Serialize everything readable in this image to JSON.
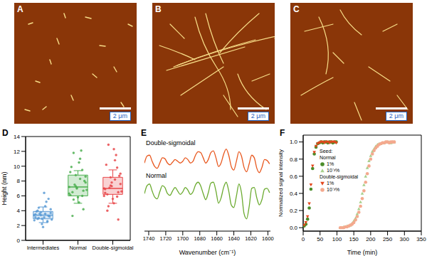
{
  "images": [
    {
      "label": "A",
      "scale_bar": "2 μm"
    },
    {
      "label": "B",
      "scale_bar": "2 μm"
    },
    {
      "label": "C",
      "scale_bar": "2 μm"
    }
  ],
  "chart_data": [
    {
      "type": "box",
      "title": "D",
      "ylabel": "Height (nm)",
      "categories": [
        "Intermediates",
        "Normal",
        "Double-sigmoidal"
      ],
      "colors": [
        "#5b9bd5",
        "#4caf50",
        "#e8474a"
      ],
      "ylim": [
        0,
        14
      ],
      "yticks": [
        0,
        2,
        4,
        6,
        8,
        10,
        12,
        14
      ],
      "boxes": [
        {
          "whisker_low": 2.4,
          "q1": 2.9,
          "median": 3.4,
          "q3": 3.9,
          "whisker_high": 4.5
        },
        {
          "whisker_low": 5.0,
          "q1": 6.0,
          "median": 7.2,
          "q3": 8.8,
          "whisker_high": 9.4
        },
        {
          "whisker_low": 5.0,
          "q1": 6.2,
          "median": 7.0,
          "q3": 8.5,
          "whisker_high": 9.5
        }
      ],
      "points": [
        [
          3.4,
          2.9,
          3.8,
          3.1,
          2.6,
          4.2,
          3.5,
          3.0,
          2.2,
          4.6,
          3.3,
          2.8,
          3.9,
          3.6,
          1.8,
          5.2,
          3.2,
          2.7,
          4.0,
          3.4,
          6.4,
          2.5,
          3.7,
          3.1,
          4.4,
          2.9,
          3.6,
          5.6
        ],
        [
          7.2,
          6.5,
          8.8,
          5.1,
          9.5,
          7.8,
          6.1,
          11.8,
          7.0,
          8.3,
          4.2,
          6.8,
          9.9,
          7.5,
          5.8,
          12.1,
          8.0,
          6.3,
          3.3,
          7.3,
          10.5,
          6.0,
          8.6,
          9.2,
          5.5,
          7.1,
          11.0,
          6.7
        ],
        [
          7.0,
          6.2,
          8.5,
          5.0,
          9.8,
          7.6,
          6.4,
          12.9,
          7.3,
          8.2,
          2.8,
          6.6,
          10.2,
          7.1,
          5.6,
          11.5,
          8.7,
          6.0,
          4.0,
          7.4,
          12.3,
          5.9,
          9.0,
          6.9,
          4.6,
          7.8,
          10.8,
          6.5
        ]
      ]
    },
    {
      "type": "line",
      "title": "E",
      "xlabel": "Wavenumber (cm⁻¹)",
      "x": [
        1745,
        1742,
        1739,
        1736,
        1733,
        1730,
        1727,
        1724,
        1721,
        1718,
        1715,
        1712,
        1709,
        1706,
        1703,
        1700,
        1697,
        1694,
        1691,
        1688,
        1685,
        1682,
        1679,
        1676,
        1673,
        1670,
        1667,
        1664,
        1661,
        1658,
        1655,
        1652,
        1649,
        1646,
        1643,
        1640,
        1637,
        1634,
        1631,
        1628,
        1625,
        1622,
        1619,
        1616,
        1613,
        1610,
        1607,
        1604,
        1601,
        1598
      ],
      "xlim": [
        1745,
        1597
      ],
      "xticks": [
        1740,
        1720,
        1700,
        1680,
        1660,
        1640,
        1620,
        1600
      ],
      "ylim": [
        0,
        11
      ],
      "tick_labels": "x",
      "series": [
        {
          "name": "Double-sigmoidal",
          "color": "#e8571e",
          "values": [
            7.8,
            8.6,
            8.7,
            8.0,
            7.4,
            7.2,
            7.8,
            8.4,
            8.3,
            7.8,
            7.6,
            7.9,
            8.2,
            8.0,
            7.8,
            8.0,
            8.4,
            8.2,
            7.8,
            8.0,
            8.7,
            9.1,
            9.0,
            8.4,
            7.8,
            8.2,
            9.0,
            9.2,
            8.4,
            7.4,
            7.8,
            8.8,
            9.4,
            8.7,
            7.4,
            7.0,
            8.0,
            9.1,
            8.6,
            7.3,
            6.8,
            7.7,
            8.7,
            8.4,
            7.2,
            6.7,
            7.3,
            8.2,
            8.1,
            7.7
          ]
        },
        {
          "name": "Normal",
          "color": "#6aaa2e",
          "values": [
            4.3,
            5.2,
            5.4,
            4.6,
            3.9,
            3.7,
            4.5,
            5.2,
            5.0,
            4.3,
            4.1,
            4.6,
            5.0,
            4.6,
            4.2,
            4.5,
            5.0,
            4.7,
            4.2,
            4.5,
            5.3,
            5.6,
            5.2,
            4.3,
            3.6,
            4.4,
            5.5,
            5.6,
            4.6,
            3.2,
            3.8,
            5.0,
            5.6,
            4.6,
            3.0,
            2.7,
            4.0,
            5.4,
            4.4,
            2.0,
            1.4,
            2.8,
            4.9,
            5.0,
            3.8,
            3.0,
            3.6,
            4.8,
            4.9,
            4.4
          ]
        }
      ]
    },
    {
      "type": "scatter",
      "title": "F",
      "xlabel": "Time (min)",
      "ylabel": "Normalized signal intensity",
      "xlim": [
        0,
        350
      ],
      "xticks": [
        0,
        50,
        100,
        150,
        200,
        250,
        300,
        350
      ],
      "ylim": [
        -0.04,
        1.08
      ],
      "yticks": [
        {
          "value": 0,
          "label": "0.0"
        },
        0.2,
        0.4,
        0.6,
        0.8,
        {
          "value": 1,
          "label": "1.0"
        }
      ],
      "legend": "left",
      "legend_title": "Seed:",
      "series": [
        {
          "name": "1%",
          "group": "Normal",
          "color": "#4a8c2a",
          "marker": "circle",
          "x": [
            3,
            8,
            13,
            18,
            23,
            28,
            33,
            38,
            43,
            48,
            53,
            58,
            63,
            68,
            73,
            78,
            83,
            88,
            93,
            98
          ],
          "values": [
            0.02,
            0.04,
            0.1,
            0.23,
            0.45,
            0.69,
            0.86,
            0.94,
            0.98,
            0.99,
            1.0,
            0.99,
            1.0,
            1.0,
            0.99,
            1.0,
            1.0,
            0.99,
            1.0,
            1.0
          ]
        },
        {
          "name": "10⁻³%",
          "group": "Normal",
          "color": "#a8d08d",
          "marker": "triangle",
          "x": [
            110,
            115,
            120,
            125,
            130,
            135,
            140,
            145,
            150,
            155,
            160,
            165,
            170,
            175,
            180,
            185,
            190,
            195,
            200,
            205,
            210,
            215,
            220,
            225,
            230,
            235,
            240,
            245,
            250,
            255,
            260,
            265,
            270
          ],
          "values": [
            0.0,
            0.0,
            0.01,
            0.01,
            0.02,
            0.02,
            0.03,
            0.05,
            0.08,
            0.11,
            0.16,
            0.22,
            0.3,
            0.4,
            0.5,
            0.6,
            0.7,
            0.78,
            0.84,
            0.89,
            0.92,
            0.95,
            0.97,
            0.98,
            0.98,
            0.99,
            0.99,
            1.0,
            1.0,
            1.0,
            0.99,
            1.0,
            1.0
          ]
        },
        {
          "name": "1%",
          "group": "Double-sigmoidal",
          "color": "#e4461c",
          "marker": "triangle-down",
          "x": [
            3,
            8,
            13,
            18,
            23,
            28,
            33,
            38,
            43,
            48,
            53,
            58,
            63,
            68,
            73,
            78,
            83,
            88,
            93,
            98
          ],
          "values": [
            0.03,
            0.06,
            0.13,
            0.28,
            0.5,
            0.72,
            0.88,
            0.95,
            0.98,
            0.99,
            1.0,
            1.0,
            0.99,
            1.0,
            1.0,
            0.99,
            1.0,
            1.0,
            1.0,
            0.99
          ]
        },
        {
          "name": "10⁻³%",
          "group": "Double-sigmoidal",
          "color": "#f4a98e",
          "marker": "circle",
          "x": [
            110,
            115,
            120,
            125,
            130,
            135,
            140,
            145,
            150,
            155,
            160,
            165,
            170,
            175,
            180,
            185,
            190,
            195,
            200,
            205,
            210,
            215,
            220,
            225,
            230,
            235,
            240,
            245,
            250,
            255,
            260,
            265,
            270
          ],
          "values": [
            0.0,
            0.0,
            0.0,
            0.01,
            0.01,
            0.02,
            0.03,
            0.04,
            0.06,
            0.09,
            0.13,
            0.18,
            0.25,
            0.34,
            0.43,
            0.53,
            0.63,
            0.72,
            0.8,
            0.86,
            0.9,
            0.93,
            0.95,
            0.97,
            0.98,
            0.99,
            0.99,
            1.0,
            1.0,
            0.99,
            1.0,
            1.0,
            1.0
          ]
        }
      ]
    }
  ]
}
